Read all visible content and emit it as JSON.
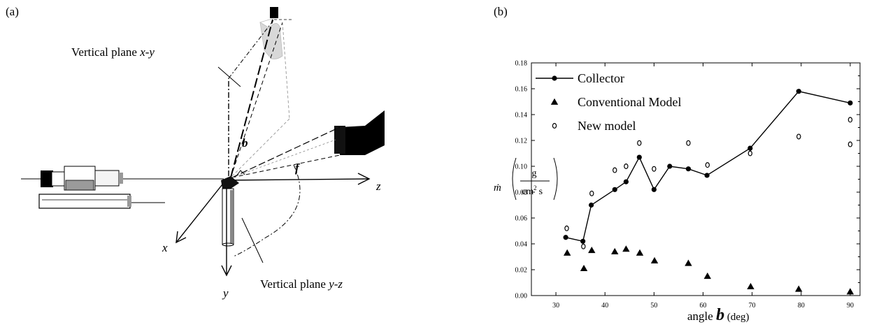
{
  "panel_a": {
    "label": "(a)",
    "plane_xy_label_prefix": "Vertical plane ",
    "plane_xy_label_axes": "x-y",
    "plane_yz_label_prefix": "Vertical plane ",
    "plane_yz_label_axes": "y-z",
    "axis_x": "x",
    "axis_y": "y",
    "axis_z": "z",
    "angle_b": "b",
    "angle_f": "f"
  },
  "panel_b": {
    "label": "(b)",
    "ylabel_symbol": "ṁ",
    "ylabel_unit_numerator": "g",
    "ylabel_unit_denominator_cm": "cm",
    "ylabel_unit_denominator_exp": "2",
    "ylabel_unit_denominator_s": "s",
    "xlabel_prefix": "angle ",
    "xlabel_symbol": "b",
    "xlabel_suffix": " (deg)"
  },
  "chart_data": {
    "type": "scatter",
    "xlim": [
      25,
      92
    ],
    "ylim": [
      0,
      0.18
    ],
    "x_ticks": [
      30,
      40,
      50,
      60,
      70,
      80,
      90
    ],
    "y_ticks": [
      0.0,
      0.02,
      0.04,
      0.06,
      0.08,
      0.1,
      0.12,
      0.14,
      0.16,
      0.18
    ],
    "x_tick_labels": [
      "30",
      "40",
      "50",
      "60",
      "70",
      "80",
      "90"
    ],
    "y_tick_labels": [
      "0.00",
      "0.02",
      "0.04",
      "0.06",
      "0.08",
      "0.10",
      "0.12",
      "0.14",
      "0.16",
      "0.18"
    ],
    "grid": false,
    "legend_position": "top-left",
    "series": [
      {
        "name": "Collector",
        "marker": "filled-circle",
        "connected": true,
        "points": [
          [
            32,
            0.045
          ],
          [
            35.5,
            0.042
          ],
          [
            37.2,
            0.07
          ],
          [
            42,
            0.082
          ],
          [
            44.3,
            0.088
          ],
          [
            47,
            0.107
          ],
          [
            50,
            0.082
          ],
          [
            53.2,
            0.1
          ],
          [
            57,
            0.098
          ],
          [
            60.8,
            0.093
          ],
          [
            69.6,
            0.114
          ],
          [
            79.5,
            0.158
          ],
          [
            90,
            0.149
          ]
        ]
      },
      {
        "name": "Conventional Model",
        "marker": "filled-triangle",
        "connected": false,
        "points": [
          [
            32.3,
            0.033
          ],
          [
            35.7,
            0.021
          ],
          [
            37.3,
            0.035
          ],
          [
            42,
            0.034
          ],
          [
            44.3,
            0.036
          ],
          [
            47.1,
            0.033
          ],
          [
            50.1,
            0.027
          ],
          [
            57,
            0.025
          ],
          [
            60.9,
            0.015
          ],
          [
            69.7,
            0.007
          ],
          [
            79.5,
            0.005
          ],
          [
            90,
            0.003
          ]
        ]
      },
      {
        "name": "New model",
        "marker": "open-circle",
        "connected": false,
        "points": [
          [
            32.2,
            0.052
          ],
          [
            35.6,
            0.038
          ],
          [
            37.3,
            0.079
          ],
          [
            42,
            0.097
          ],
          [
            44.3,
            0.1
          ],
          [
            47,
            0.118
          ],
          [
            50,
            0.098
          ],
          [
            57,
            0.118
          ],
          [
            60.9,
            0.101
          ],
          [
            69.6,
            0.11
          ],
          [
            79.5,
            0.123
          ],
          [
            90,
            0.136
          ],
          [
            90,
            0.117
          ]
        ]
      }
    ]
  }
}
